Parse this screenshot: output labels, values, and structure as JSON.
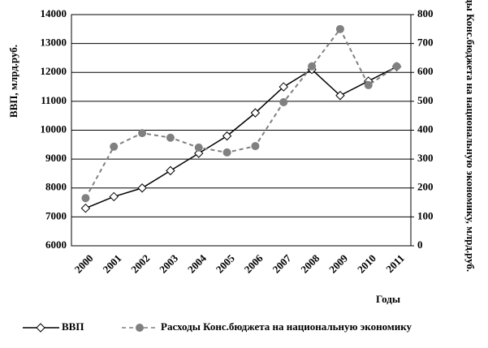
{
  "chart_data": {
    "type": "line",
    "categories": [
      "2000",
      "2001",
      "2002",
      "2003",
      "2004",
      "2005",
      "2006",
      "2007",
      "2008",
      "2009",
      "2010",
      "2011"
    ],
    "series": [
      {
        "name": "ВВП",
        "color": "#000000",
        "values": [
          7300,
          7700,
          8000,
          8600,
          9200,
          9800,
          10600,
          11500,
          12100,
          11200,
          11700,
          12200
        ]
      },
      {
        "name": "Расходы Конс.бюджета на национальную экономику",
        "color": "#808080",
        "axis": "y2",
        "values": [
          165,
          343,
          390,
          374,
          340,
          323,
          345,
          497,
          621,
          750,
          556,
          621
        ]
      }
    ],
    "ylabel": "ВВП, млрд.руб.",
    "y2label": "Расходы Конс.бюджета на национальную экономику, млрд.руб.",
    "xlabel": "Годы",
    "ylim": [
      6000,
      14000
    ],
    "yticks": [
      6000,
      7000,
      8000,
      9000,
      10000,
      11000,
      12000,
      13000,
      14000
    ],
    "y2lim": [
      0,
      800
    ],
    "y2ticks": [
      0,
      100,
      200,
      300,
      400,
      500,
      600,
      700,
      800
    ],
    "grid": true
  }
}
